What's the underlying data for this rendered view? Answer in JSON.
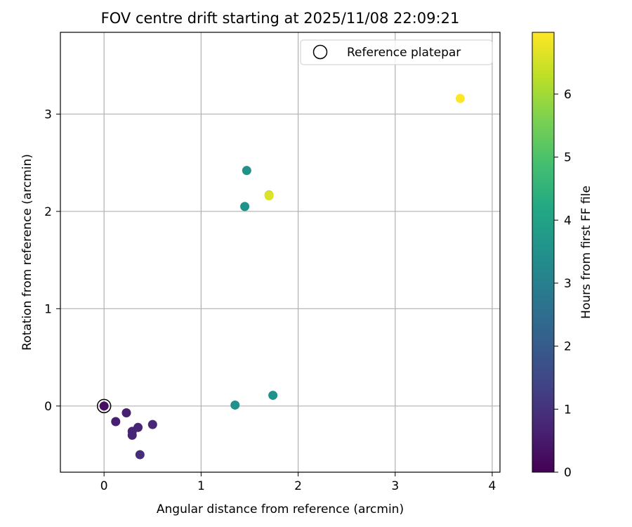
{
  "chart_data": {
    "type": "scatter",
    "title": "FOV centre drift starting at 2025/11/08 22:09:21",
    "xlabel": "Angular distance from reference (arcmin)",
    "ylabel": "Rotation from reference (arcmin)",
    "xlim": [
      -0.45,
      4.08
    ],
    "ylim": [
      -0.68,
      3.84
    ],
    "xticks": [
      0,
      1,
      2,
      3,
      4
    ],
    "yticks": [
      0,
      1,
      2,
      3
    ],
    "grid": true,
    "legend": {
      "position": "upper right",
      "entries": [
        "Reference platepar"
      ]
    },
    "reference_point": {
      "x": 0,
      "y": 0,
      "label": "Reference platepar"
    },
    "colorbar": {
      "label": "Hours from first FF file",
      "colormap": "viridis",
      "range": [
        0,
        6.98
      ],
      "ticks": [
        0,
        1,
        2,
        3,
        4,
        5,
        6
      ]
    },
    "points": [
      {
        "x": 0.0,
        "y": 0.0,
        "hours": 0.3
      },
      {
        "x": 0.12,
        "y": -0.16,
        "hours": 0.6
      },
      {
        "x": 0.23,
        "y": -0.07,
        "hours": 0.6
      },
      {
        "x": 0.29,
        "y": -0.26,
        "hours": 0.7
      },
      {
        "x": 0.29,
        "y": -0.3,
        "hours": 0.7
      },
      {
        "x": 0.35,
        "y": -0.22,
        "hours": 0.7
      },
      {
        "x": 0.37,
        "y": -0.5,
        "hours": 0.9
      },
      {
        "x": 0.5,
        "y": -0.19,
        "hours": 0.8
      },
      {
        "x": 1.35,
        "y": 0.01,
        "hours": 3.5
      },
      {
        "x": 1.74,
        "y": 0.11,
        "hours": 3.5
      },
      {
        "x": 1.45,
        "y": 2.05,
        "hours": 3.5
      },
      {
        "x": 1.47,
        "y": 2.42,
        "hours": 3.5
      },
      {
        "x": 1.7,
        "y": 2.17,
        "hours": 6.4
      },
      {
        "x": 1.7,
        "y": 2.16,
        "hours": 6.6
      },
      {
        "x": 3.67,
        "y": 3.16,
        "hours": 6.98
      }
    ]
  }
}
